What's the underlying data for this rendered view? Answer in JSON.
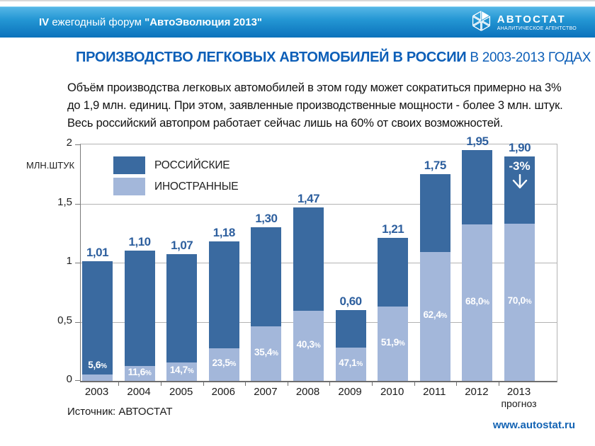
{
  "header": {
    "forum": {
      "prefix": "IV",
      "middle": " ежегодный форум ",
      "quoted": "\"АвтоЭволюция 2013\""
    },
    "logo": {
      "name": "АВТОСТАТ",
      "tagline": "АНАЛИТИЧЕСКОЕ АГЕНТСТВО"
    }
  },
  "title": {
    "main": "ПРОИЗВОДСТВО ЛЕГКОВЫХ АВТОМОБИЛЕЙ В РОССИИ",
    "suffix": " В 2003-2013 ГОДАХ"
  },
  "intro_lines": [
    "Объём производства легковых автомобилей в этом году может сократиться примерно на 3%",
    "до 1,9 млн. единиц. При этом, заявленные производственные мощности - более 3 млн. штук.",
    "Весь российский автопром работает сейчас лишь на 60% от своих возможностей."
  ],
  "chart_data": {
    "type": "bar",
    "stacked": true,
    "unit_label": "МЛН.ШТУК",
    "ylim": [
      0,
      2
    ],
    "y_ticks": [
      "2",
      "1,5",
      "1",
      "0,5",
      "0"
    ],
    "grid": true,
    "legend_position": "top-left-inside",
    "legend": [
      {
        "label": "РОССИЙСКИЕ",
        "color": "#3a6aa0"
      },
      {
        "label": "ИНОСТРАННЫЕ",
        "color": "#a3b7da"
      }
    ],
    "percent_suffix": "%",
    "bars": [
      {
        "year": "2003",
        "total": 1.01,
        "total_label": "1,01",
        "foreign_pct": 5.6,
        "pct_label": "5,6"
      },
      {
        "year": "2004",
        "total": 1.1,
        "total_label": "1,10",
        "foreign_pct": 11.6,
        "pct_label": "11,6"
      },
      {
        "year": "2005",
        "total": 1.07,
        "total_label": "1,07",
        "foreign_pct": 14.7,
        "pct_label": "14,7"
      },
      {
        "year": "2006",
        "total": 1.18,
        "total_label": "1,18",
        "foreign_pct": 23.5,
        "pct_label": "23,5"
      },
      {
        "year": "2007",
        "total": 1.3,
        "total_label": "1,30",
        "foreign_pct": 35.4,
        "pct_label": "35,4"
      },
      {
        "year": "2008",
        "total": 1.47,
        "total_label": "1,47",
        "foreign_pct": 40.3,
        "pct_label": "40,3"
      },
      {
        "year": "2009",
        "total": 0.6,
        "total_label": "0,60",
        "foreign_pct": 47.1,
        "pct_label": "47,1"
      },
      {
        "year": "2010",
        "total": 1.21,
        "total_label": "1,21",
        "foreign_pct": 51.9,
        "pct_label": "51,9"
      },
      {
        "year": "2011",
        "total": 1.75,
        "total_label": "1,75",
        "foreign_pct": 62.4,
        "pct_label": "62,4"
      },
      {
        "year": "2012",
        "total": 1.95,
        "total_label": "1,95",
        "foreign_pct": 68.0,
        "pct_label": "68,0"
      },
      {
        "year": "2013",
        "total": 1.9,
        "total_label": "1,90",
        "foreign_pct": 70.0,
        "pct_label": "70,0",
        "sublabel": "прогноз",
        "annotation": {
          "text": "-3%",
          "arrow": "down"
        }
      }
    ]
  },
  "footer": {
    "source": "Источник: АВТОСТАТ",
    "website": "www.autostat.ru"
  },
  "colors": {
    "title_blue": "#0d5fb8",
    "value_blue": "#2d5f9e",
    "bar_dark": "#3a6aa0",
    "bar_light": "#a3b7da",
    "header_top": "#55b6e6",
    "header_bottom": "#0c72bc",
    "grid_grey": "#b3b3b3",
    "axis_grey": "#6e6e6e",
    "website_blue": "#1464b4"
  }
}
